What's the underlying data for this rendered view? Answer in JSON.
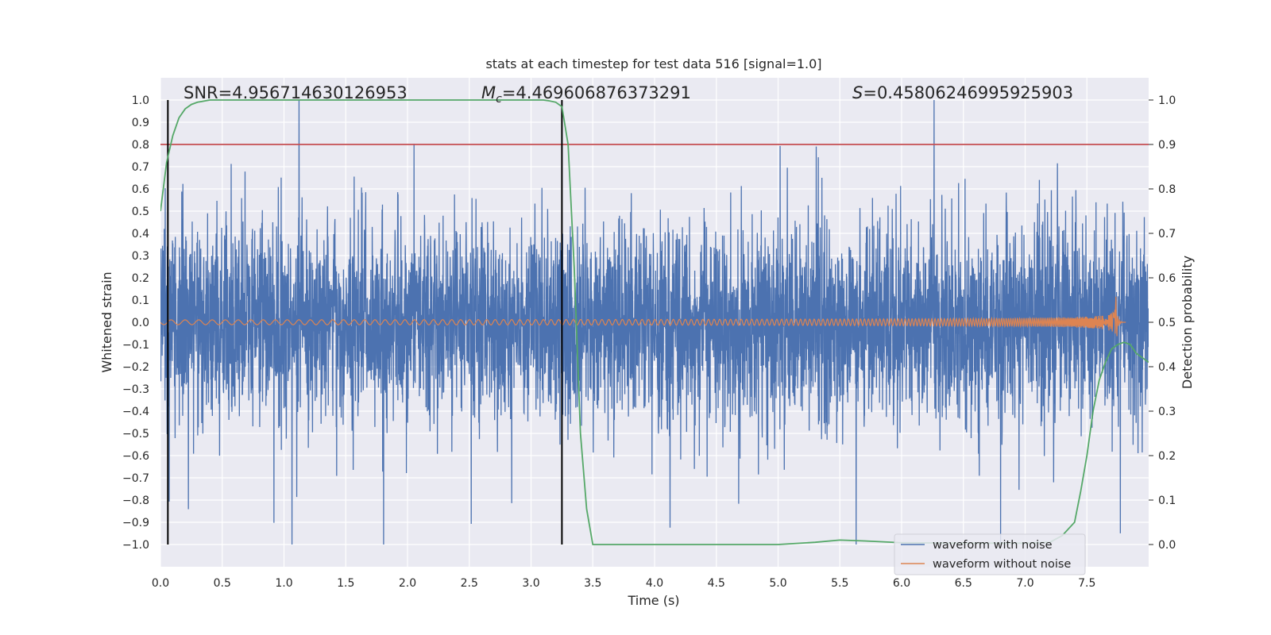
{
  "chart_data": {
    "type": "line",
    "title": "stats at each timestep for test data 516 [signal=1.0]",
    "xlabel": "Time (s)",
    "ylabel": "Whitened strain",
    "y2label": "Detection probability",
    "xlim": [
      0.0,
      8.0
    ],
    "ylim": [
      -1.1,
      1.1
    ],
    "y2lim": [
      -0.05,
      1.05
    ],
    "xticks": [
      "0.0",
      "0.5",
      "1.0",
      "1.5",
      "2.0",
      "2.5",
      "3.0",
      "3.5",
      "4.0",
      "4.5",
      "5.0",
      "5.5",
      "6.0",
      "6.5",
      "7.0",
      "7.5"
    ],
    "yticks": [
      "1.0",
      "0.9",
      "0.8",
      "0.7",
      "0.6",
      "0.5",
      "0.4",
      "0.3",
      "0.2",
      "0.1",
      "0.0",
      "−0.1",
      "−0.2",
      "−0.3",
      "−0.4",
      "−0.5",
      "−0.6",
      "−0.7",
      "−0.8",
      "−0.9",
      "−1.0"
    ],
    "y2ticks": [
      "1.0",
      "0.9",
      "0.8",
      "0.7",
      "0.6",
      "0.5",
      "0.4",
      "0.3",
      "0.2",
      "0.1",
      "0.0"
    ],
    "threshold": 0.8,
    "vlines": [
      0.06,
      3.25
    ],
    "stats": {
      "snr_label": "SNR=4.956714630126953",
      "mc_symbol": "M",
      "mc_sub": "c",
      "mc_value": "=4.469606876373291",
      "s_symbol": "S",
      "s_value": "=0.45806246995925903"
    },
    "legend": [
      "waveform with noise",
      "waveform without noise"
    ],
    "colors": {
      "noise": "#4c72b0",
      "signal": "#dd8452",
      "probability": "#55a868",
      "threshold": "#c44e52",
      "vline": "#000000",
      "background": "#eaeaf2",
      "grid": "#ffffff"
    },
    "series": [
      {
        "name": "Detection probability",
        "axis": "right",
        "x": [
          0.0,
          0.05,
          0.1,
          0.15,
          0.2,
          0.25,
          0.3,
          0.4,
          0.5,
          1.0,
          2.0,
          3.0,
          3.1,
          3.15,
          3.2,
          3.25,
          3.3,
          3.35,
          3.4,
          3.45,
          3.5,
          3.6,
          4.0,
          4.5,
          5.0,
          5.3,
          5.5,
          5.7,
          6.0,
          6.5,
          7.0,
          7.2,
          7.3,
          7.4,
          7.45,
          7.5,
          7.55,
          7.6,
          7.65,
          7.7,
          7.75,
          7.8,
          7.85,
          7.9,
          7.95,
          8.0
        ],
        "values": [
          0.75,
          0.86,
          0.92,
          0.96,
          0.98,
          0.99,
          0.995,
          1.0,
          1.0,
          1.0,
          1.0,
          1.0,
          1.0,
          0.998,
          0.995,
          0.985,
          0.9,
          0.62,
          0.25,
          0.08,
          0.0,
          0.0,
          0.0,
          0.0,
          0.0,
          0.005,
          0.01,
          0.008,
          0.004,
          0.003,
          0.003,
          0.005,
          0.02,
          0.05,
          0.12,
          0.2,
          0.3,
          0.37,
          0.41,
          0.44,
          0.45,
          0.455,
          0.45,
          0.43,
          0.42,
          0.41
        ]
      },
      {
        "name": "waveform with noise",
        "axis": "left",
        "note": "dense noisy strain trace, amplitude approx ±1.0, spanning 0–8 s"
      },
      {
        "name": "waveform without noise",
        "axis": "left",
        "note": "chirp signal, amplitude growing from ~0.01 to ~0.13 until merger at ~7.73 s"
      }
    ]
  }
}
